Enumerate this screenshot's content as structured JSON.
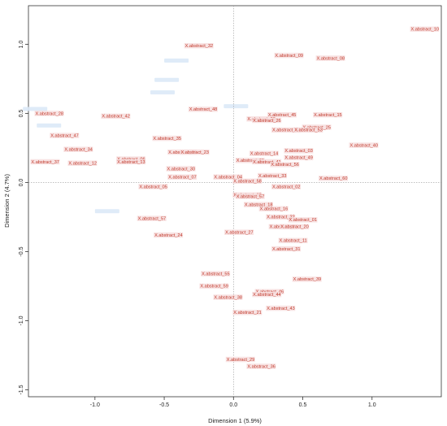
{
  "chart_data": {
    "type": "scatter",
    "xlabel": "Dimension 1 (5.9%)",
    "ylabel": "Dimension 2 (4.7%)",
    "xlim": [
      -1.48,
      1.5
    ],
    "ylim": [
      -1.55,
      1.28
    ],
    "xticks": [
      -1.0,
      -0.5,
      0.0,
      0.5,
      1.0
    ],
    "xtick_labels": [
      "-1.0",
      "-0.5",
      "0.0",
      "0.5",
      "1.0"
    ],
    "yticks": [
      -1.5,
      -1.0,
      -0.5,
      0.0,
      0.5,
      1.0
    ],
    "ytick_labels": [
      "-1.5",
      "-1.0",
      "-0.5",
      "0.0",
      "0.5",
      "1.0"
    ],
    "reference_lines": {
      "x": 0,
      "y": 0,
      "style": "dotted"
    },
    "label_color": "#c0392b",
    "points": [
      {
        "label": "X.abstract_10",
        "x": 1.28,
        "y": 1.1
      },
      {
        "label": "X.abstract_32",
        "x": -0.35,
        "y": 0.98
      },
      {
        "label": "X.abstract_09",
        "x": 0.3,
        "y": 0.91
      },
      {
        "label": "X.abstract_08",
        "x": 0.6,
        "y": 0.89
      },
      {
        "label": "X.abstract_28",
        "x": -1.43,
        "y": 0.49
      },
      {
        "label": "X.abstract_42",
        "x": -0.95,
        "y": 0.47
      },
      {
        "label": "X.abstract_48",
        "x": -0.32,
        "y": 0.52
      },
      {
        "label": "X.abstract_45",
        "x": 0.25,
        "y": 0.48
      },
      {
        "label": "X.abstract_15",
        "x": 0.58,
        "y": 0.48
      },
      {
        "label": "X.abstract_20",
        "x": 0.1,
        "y": 0.45
      },
      {
        "label": "X.abstract_26",
        "x": 0.14,
        "y": 0.44
      },
      {
        "label": "X.abstract_25",
        "x": 0.5,
        "y": 0.39
      },
      {
        "label": "X.abstract_34",
        "x": 0.28,
        "y": 0.37
      },
      {
        "label": "X.abstract_53",
        "x": 0.44,
        "y": 0.37
      },
      {
        "label": "X.abstract_47",
        "x": -1.32,
        "y": 0.33
      },
      {
        "label": "X.abstract_35",
        "x": -0.58,
        "y": 0.31
      },
      {
        "label": "X.abstract_40",
        "x": 0.84,
        "y": 0.26
      },
      {
        "label": "X.abstract_34",
        "x": -1.22,
        "y": 0.23
      },
      {
        "label": "X.abstract_03",
        "x": 0.37,
        "y": 0.22
      },
      {
        "label": "X.abstract_52",
        "x": -0.47,
        "y": 0.21
      },
      {
        "label": "X.abstract_23",
        "x": -0.38,
        "y": 0.21
      },
      {
        "label": "X.abstract_14",
        "x": 0.12,
        "y": 0.2
      },
      {
        "label": "X.abstract_49",
        "x": 0.37,
        "y": 0.17
      },
      {
        "label": "X.abstract_37",
        "x": -1.46,
        "y": 0.14
      },
      {
        "label": "X.abstract_12",
        "x": -1.19,
        "y": 0.13
      },
      {
        "label": "X.abstract_06",
        "x": -0.84,
        "y": 0.16
      },
      {
        "label": "X.abstract_13",
        "x": -0.84,
        "y": 0.14
      },
      {
        "label": "X.abstract_61",
        "x": 0.02,
        "y": 0.15
      },
      {
        "label": "X.abstract_41",
        "x": 0.14,
        "y": 0.14
      },
      {
        "label": "X.abstract_56",
        "x": 0.27,
        "y": 0.12
      },
      {
        "label": "X.abstract_30",
        "x": -0.48,
        "y": 0.09
      },
      {
        "label": "X.abstract_07",
        "x": -0.47,
        "y": 0.03
      },
      {
        "label": "X.abstract_04",
        "x": -0.14,
        "y": 0.03
      },
      {
        "label": "X.abstract_33",
        "x": 0.18,
        "y": 0.04
      },
      {
        "label": "X.abstract_60",
        "x": 0.62,
        "y": 0.02
      },
      {
        "label": "X.abstract_58",
        "x": 0.0,
        "y": 0.0
      },
      {
        "label": "X.abstract_05",
        "x": -0.68,
        "y": -0.04
      },
      {
        "label": "X.abstract_02",
        "x": 0.28,
        "y": -0.04
      },
      {
        "label": "X.abstract_19",
        "x": 0.0,
        "y": -0.1
      },
      {
        "label": "X.abstract_57",
        "x": 0.02,
        "y": -0.11
      },
      {
        "label": "X.abstract_18",
        "x": 0.08,
        "y": -0.17
      },
      {
        "label": "X.abstract_16",
        "x": 0.19,
        "y": -0.2
      },
      {
        "label": "X.abstract_22",
        "x": 0.24,
        "y": -0.26
      },
      {
        "label": "X.abstract_57",
        "x": -0.69,
        "y": -0.27
      },
      {
        "label": "X.abstract_01",
        "x": 0.4,
        "y": -0.28
      },
      {
        "label": "X.abstract_44",
        "x": 0.26,
        "y": -0.33
      },
      {
        "label": "X.abstract_20",
        "x": 0.34,
        "y": -0.33
      },
      {
        "label": "X.abstract_27",
        "x": -0.06,
        "y": -0.37
      },
      {
        "label": "X.abstract_24",
        "x": -0.57,
        "y": -0.39
      },
      {
        "label": "X.abstract_11",
        "x": 0.33,
        "y": -0.43
      },
      {
        "label": "X.abstract_31",
        "x": 0.28,
        "y": -0.49
      },
      {
        "label": "X.abstract_55",
        "x": -0.23,
        "y": -0.67
      },
      {
        "label": "X.abstract_39",
        "x": 0.43,
        "y": -0.71
      },
      {
        "label": "X.abstract_59",
        "x": -0.24,
        "y": -0.76
      },
      {
        "label": "X.abstract_46",
        "x": 0.16,
        "y": -0.8
      },
      {
        "label": "X.abstract_44",
        "x": 0.14,
        "y": -0.82
      },
      {
        "label": "X.abstract_38",
        "x": -0.14,
        "y": -0.84
      },
      {
        "label": "X.abstract_43",
        "x": 0.24,
        "y": -0.92
      },
      {
        "label": "X.abstract_21",
        "x": 0.0,
        "y": -0.95
      },
      {
        "label": "X.abstract_29",
        "x": -0.05,
        "y": -1.29
      },
      {
        "label": "X.abstract_36",
        "x": 0.1,
        "y": -1.34
      }
    ],
    "faint_blobs": [
      {
        "x": -0.5,
        "y": 0.88
      },
      {
        "x": -0.57,
        "y": 0.74
      },
      {
        "x": -0.6,
        "y": 0.65
      },
      {
        "x": -1.52,
        "y": 0.53
      },
      {
        "x": -1.42,
        "y": 0.41
      },
      {
        "x": -1.0,
        "y": -0.21
      },
      {
        "x": -0.07,
        "y": 0.55
      }
    ]
  }
}
